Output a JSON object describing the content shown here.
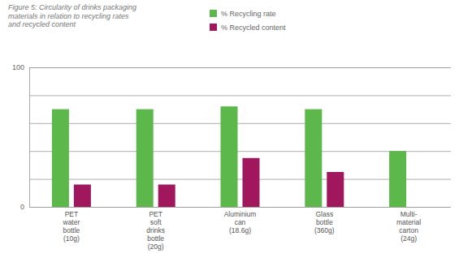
{
  "chart_data": {
    "type": "bar",
    "title": "Figure 5: Circularity of drinks packaging\nmaterials in relation to recycling rates\nand recycled content",
    "categories": [
      "PET\nwater\nbottle\n(10g)",
      "PET\nsoft\ndrinks\nbottle\n(20g)",
      "Aluminium\ncan\n(18.6g)",
      "Glass\nbottle\n(360g)",
      "Multi-\nmaterial\ncarton\n(24g)"
    ],
    "series": [
      {
        "name": "% Recycling rate",
        "color": "#5cb84a",
        "values": [
          70,
          70,
          72,
          70,
          40
        ]
      },
      {
        "name": "% Recycled content",
        "color": "#a0175e",
        "values": [
          16,
          16,
          35,
          25,
          0
        ]
      }
    ],
    "ylim": [
      0,
      100
    ],
    "yticks": [
      0,
      {
        "value": 20,
        "label": null
      },
      {
        "value": 40,
        "label": null
      },
      {
        "value": 60,
        "label": null
      },
      {
        "value": 80,
        "label": null
      },
      100
    ],
    "grid": true,
    "legend": "top"
  }
}
